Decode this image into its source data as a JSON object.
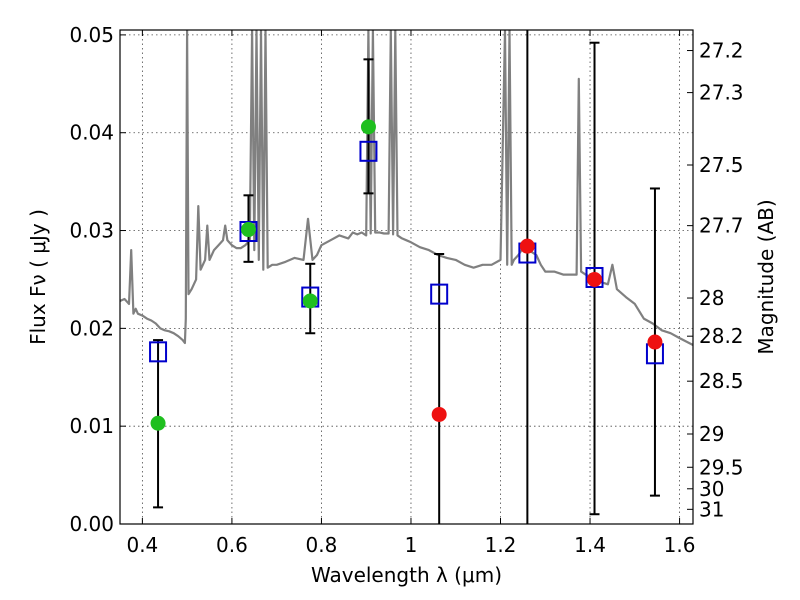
{
  "chart_data": {
    "type": "scatter",
    "title": "",
    "xlabel": "Wavelength  λ (μm)",
    "ylabel": "Flux  Fν  ( μJy )",
    "y2label": "Magnitude (AB)",
    "xlim": [
      0.35,
      1.63
    ],
    "ylim": [
      0.0,
      0.0505
    ],
    "xticks": [
      0.4,
      0.6,
      0.8,
      1.0,
      1.2,
      1.4,
      1.6
    ],
    "xtick_labels": [
      "0.4",
      "0.6",
      "0.8",
      "1",
      "1.2",
      "1.4",
      "1.6"
    ],
    "yticks": [
      0.0,
      0.01,
      0.02,
      0.03,
      0.04,
      0.05
    ],
    "ytick_labels": [
      "0.00",
      "0.01",
      "0.02",
      "0.03",
      "0.04",
      "0.05"
    ],
    "y2ticks": [
      {
        "label": "27.2",
        "flux": 0.0484
      },
      {
        "label": "27.3",
        "flux": 0.0441
      },
      {
        "label": "27.5",
        "flux": 0.0367
      },
      {
        "label": "27.7",
        "flux": 0.0305
      },
      {
        "label": "28",
        "flux": 0.0231
      },
      {
        "label": "28.2",
        "flux": 0.0192
      },
      {
        "label": "28.5",
        "flux": 0.0146
      },
      {
        "label": "29",
        "flux": 0.0092
      },
      {
        "label": "29.5",
        "flux": 0.0058
      },
      {
        "label": "30",
        "flux": 0.0036
      },
      {
        "label": "31",
        "flux": 0.0015
      }
    ],
    "grid": true,
    "colors": {
      "model_line": "#808080",
      "model_box": "#0000cc",
      "green_points": "#1fbf1f",
      "red_points": "#ee1111",
      "errorbar": "#000000"
    },
    "errorbars": [
      {
        "x": 0.435,
        "lo": 0.0017,
        "hi": 0.0188
      },
      {
        "x": 0.637,
        "lo": 0.0268,
        "hi": 0.0336
      },
      {
        "x": 0.775,
        "lo": 0.0195,
        "hi": 0.0266
      },
      {
        "x": 0.905,
        "lo": 0.0338,
        "hi": 0.0475
      },
      {
        "x": 1.063,
        "lo": 0.0,
        "hi": 0.0276
      },
      {
        "x": 1.26,
        "lo": 0.0,
        "hi": 0.0505
      },
      {
        "x": 1.41,
        "lo": 0.001,
        "hi": 0.0492
      },
      {
        "x": 1.545,
        "lo": 0.0029,
        "hi": 0.0343
      }
    ],
    "series": [
      {
        "marker": "open-square",
        "x": [
          0.435,
          0.637,
          0.775,
          0.905,
          1.063,
          1.26,
          1.41,
          1.545
        ],
        "y": [
          0.0176,
          0.0299,
          0.0232,
          0.0381,
          0.0235,
          0.0277,
          0.0252,
          0.0174
        ]
      },
      {
        "marker": "filled-circle-green",
        "x": [
          0.435,
          0.637,
          0.775,
          0.905
        ],
        "y": [
          0.0103,
          0.0301,
          0.0228,
          0.0406
        ]
      },
      {
        "marker": "filled-circle-red",
        "x": [
          1.063,
          1.26,
          1.41,
          1.545
        ],
        "y": [
          0.0112,
          0.0284,
          0.025,
          0.0186
        ]
      },
      {
        "marker": "line",
        "x": [
          0.35,
          0.36,
          0.37,
          0.375,
          0.38,
          0.385,
          0.39,
          0.4,
          0.41,
          0.42,
          0.43,
          0.44,
          0.45,
          0.46,
          0.47,
          0.48,
          0.485,
          0.49,
          0.495,
          0.497,
          0.5,
          0.503,
          0.51,
          0.52,
          0.525,
          0.53,
          0.54,
          0.545,
          0.55,
          0.56,
          0.57,
          0.58,
          0.585,
          0.59,
          0.6,
          0.61,
          0.62,
          0.63,
          0.64,
          0.645,
          0.65,
          0.655,
          0.66,
          0.665,
          0.67,
          0.675,
          0.68,
          0.69,
          0.7,
          0.72,
          0.74,
          0.76,
          0.77,
          0.78,
          0.79,
          0.8,
          0.82,
          0.84,
          0.86,
          0.87,
          0.88,
          0.89,
          0.9,
          0.905,
          0.91,
          0.915,
          0.92,
          0.93,
          0.94,
          0.95,
          0.955,
          0.96,
          0.965,
          0.97,
          0.98,
          0.99,
          1.0,
          1.02,
          1.04,
          1.06,
          1.08,
          1.1,
          1.12,
          1.14,
          1.16,
          1.18,
          1.2,
          1.21,
          1.215,
          1.22,
          1.225,
          1.23,
          1.24,
          1.25,
          1.26,
          1.27,
          1.28,
          1.29,
          1.3,
          1.32,
          1.34,
          1.36,
          1.37,
          1.375,
          1.38,
          1.39,
          1.4,
          1.42,
          1.44,
          1.45,
          1.46,
          1.48,
          1.5,
          1.52,
          1.54,
          1.56,
          1.58,
          1.6,
          1.63
        ],
        "y": [
          0.0228,
          0.023,
          0.0225,
          0.028,
          0.0215,
          0.022,
          0.0215,
          0.0213,
          0.021,
          0.0208,
          0.0205,
          0.02,
          0.0198,
          0.0197,
          0.0195,
          0.0192,
          0.019,
          0.0188,
          0.0185,
          0.021,
          0.0505,
          0.0235,
          0.024,
          0.025,
          0.0325,
          0.026,
          0.027,
          0.0305,
          0.027,
          0.028,
          0.0285,
          0.029,
          0.0305,
          0.029,
          0.0285,
          0.0282,
          0.0282,
          0.0285,
          0.029,
          0.0505,
          0.028,
          0.0505,
          0.027,
          0.0505,
          0.026,
          0.0505,
          0.0262,
          0.0265,
          0.0265,
          0.0268,
          0.0272,
          0.027,
          0.0312,
          0.027,
          0.0275,
          0.0285,
          0.029,
          0.0295,
          0.0292,
          0.0298,
          0.0296,
          0.0298,
          0.0295,
          0.0505,
          0.0297,
          0.0505,
          0.0298,
          0.0298,
          0.0297,
          0.0297,
          0.0505,
          0.0296,
          0.0505,
          0.0295,
          0.0292,
          0.029,
          0.0288,
          0.0283,
          0.028,
          0.0275,
          0.0272,
          0.027,
          0.0265,
          0.0262,
          0.0265,
          0.0265,
          0.027,
          0.0505,
          0.0265,
          0.0505,
          0.0265,
          0.027,
          0.0275,
          0.0282,
          0.0285,
          0.0278,
          0.0275,
          0.0265,
          0.0258,
          0.0258,
          0.0255,
          0.0255,
          0.0255,
          0.0455,
          0.0258,
          0.0255,
          0.0253,
          0.0248,
          0.0245,
          0.0265,
          0.024,
          0.0232,
          0.0225,
          0.021,
          0.0205,
          0.0198,
          0.0195,
          0.019,
          0.0183
        ]
      }
    ]
  }
}
